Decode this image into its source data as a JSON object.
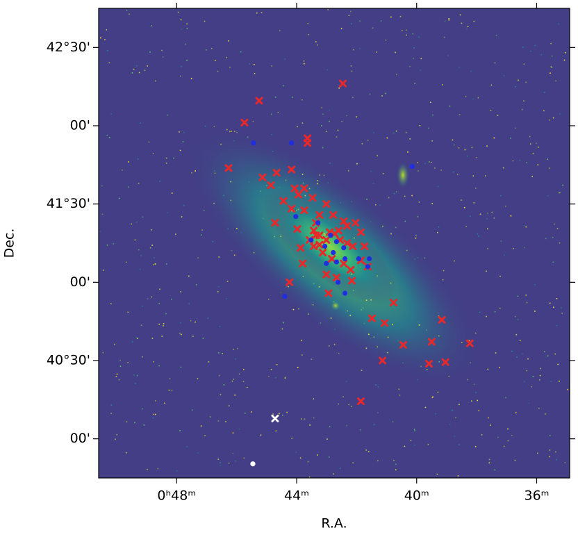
{
  "chart_data": {
    "type": "scatter",
    "x_label": "R.A.",
    "y_label": "Dec.",
    "xlim": [
      50.6,
      34.9
    ],
    "ylim": [
      39.75,
      42.75
    ],
    "xticks": [
      {
        "value": 48,
        "label": "0ʰ48ᵐ"
      },
      {
        "value": 44,
        "label": "44ᵐ"
      },
      {
        "value": 40,
        "label": "40ᵐ"
      },
      {
        "value": 36,
        "label": "36ᵐ"
      }
    ],
    "yticks": [
      {
        "value": 42.5,
        "label": "42°30'"
      },
      {
        "value": 42.0,
        "label": "00'"
      },
      {
        "value": 41.5,
        "label": "41°30'"
      },
      {
        "value": 41.0,
        "label": "00'"
      },
      {
        "value": 40.5,
        "label": "40°30'"
      },
      {
        "value": 40.0,
        "label": "00'"
      }
    ],
    "series": [
      {
        "color": "#e8282b",
        "marker": "x",
        "x": [
          42.46,
          45.25,
          45.74,
          43.64,
          43.64,
          46.27,
          44.67,
          44.17,
          45.14,
          44.86,
          44.07,
          43.75,
          43.94,
          44.44,
          43.47,
          43.01,
          44.17,
          43.75,
          43.24,
          44.72,
          43.98,
          43.36,
          42.78,
          42.43,
          42.04,
          43.43,
          43.24,
          43.01,
          42.73,
          42.55,
          42.32,
          42.13,
          41.86,
          41.74,
          43.87,
          43.13,
          42.83,
          42.43,
          42.2,
          41.86,
          41.63,
          43.8,
          43.01,
          42.67,
          42.16,
          44.24,
          42.94,
          40.77,
          41.49,
          41.07,
          39.16,
          40.45,
          39.5,
          38.23,
          41.14,
          39.59,
          39.04,
          41.86,
          43.36,
          43.24,
          42.9,
          42.6,
          42.32,
          43.57,
          43.43
        ],
        "values": [
          42.27,
          42.16,
          42.02,
          41.92,
          41.89,
          41.73,
          41.7,
          41.72,
          41.67,
          41.62,
          41.6,
          41.6,
          41.56,
          41.52,
          41.54,
          41.5,
          41.47,
          41.46,
          41.43,
          41.38,
          41.34,
          41.38,
          41.43,
          41.39,
          41.38,
          41.33,
          41.3,
          41.27,
          41.31,
          41.27,
          41.25,
          41.23,
          41.32,
          41.23,
          41.22,
          41.19,
          41.15,
          41.12,
          41.08,
          41.14,
          41.1,
          41.12,
          41.05,
          41.03,
          41.01,
          41.0,
          40.93,
          40.87,
          40.77,
          40.74,
          40.76,
          40.6,
          40.62,
          40.61,
          40.5,
          40.48,
          40.49,
          40.24,
          41.3,
          41.24,
          41.32,
          41.33,
          41.36,
          41.27,
          41.23
        ]
      },
      {
        "color": "#1f2ee0",
        "marker": "o",
        "x": [
          45.44,
          44.17,
          40.15,
          44.03,
          43.52,
          43.29,
          43.06,
          42.87,
          42.67,
          42.43,
          42.78,
          43.01,
          42.67,
          42.39,
          41.93,
          41.58,
          41.63,
          42.62,
          42.39,
          44.4
        ],
        "values": [
          41.89,
          41.89,
          41.74,
          41.42,
          41.27,
          41.38,
          41.23,
          41.3,
          41.26,
          41.22,
          41.19,
          41.12,
          41.13,
          41.15,
          41.15,
          41.15,
          41.1,
          41.0,
          40.93,
          40.91
        ]
      },
      {
        "color": "#ffffff",
        "marker": "x",
        "x": [
          44.72
        ],
        "values": [
          40.13
        ]
      },
      {
        "color": "#ffffff",
        "marker": "o",
        "x": [
          45.46
        ],
        "values": [
          39.84
        ]
      }
    ]
  }
}
